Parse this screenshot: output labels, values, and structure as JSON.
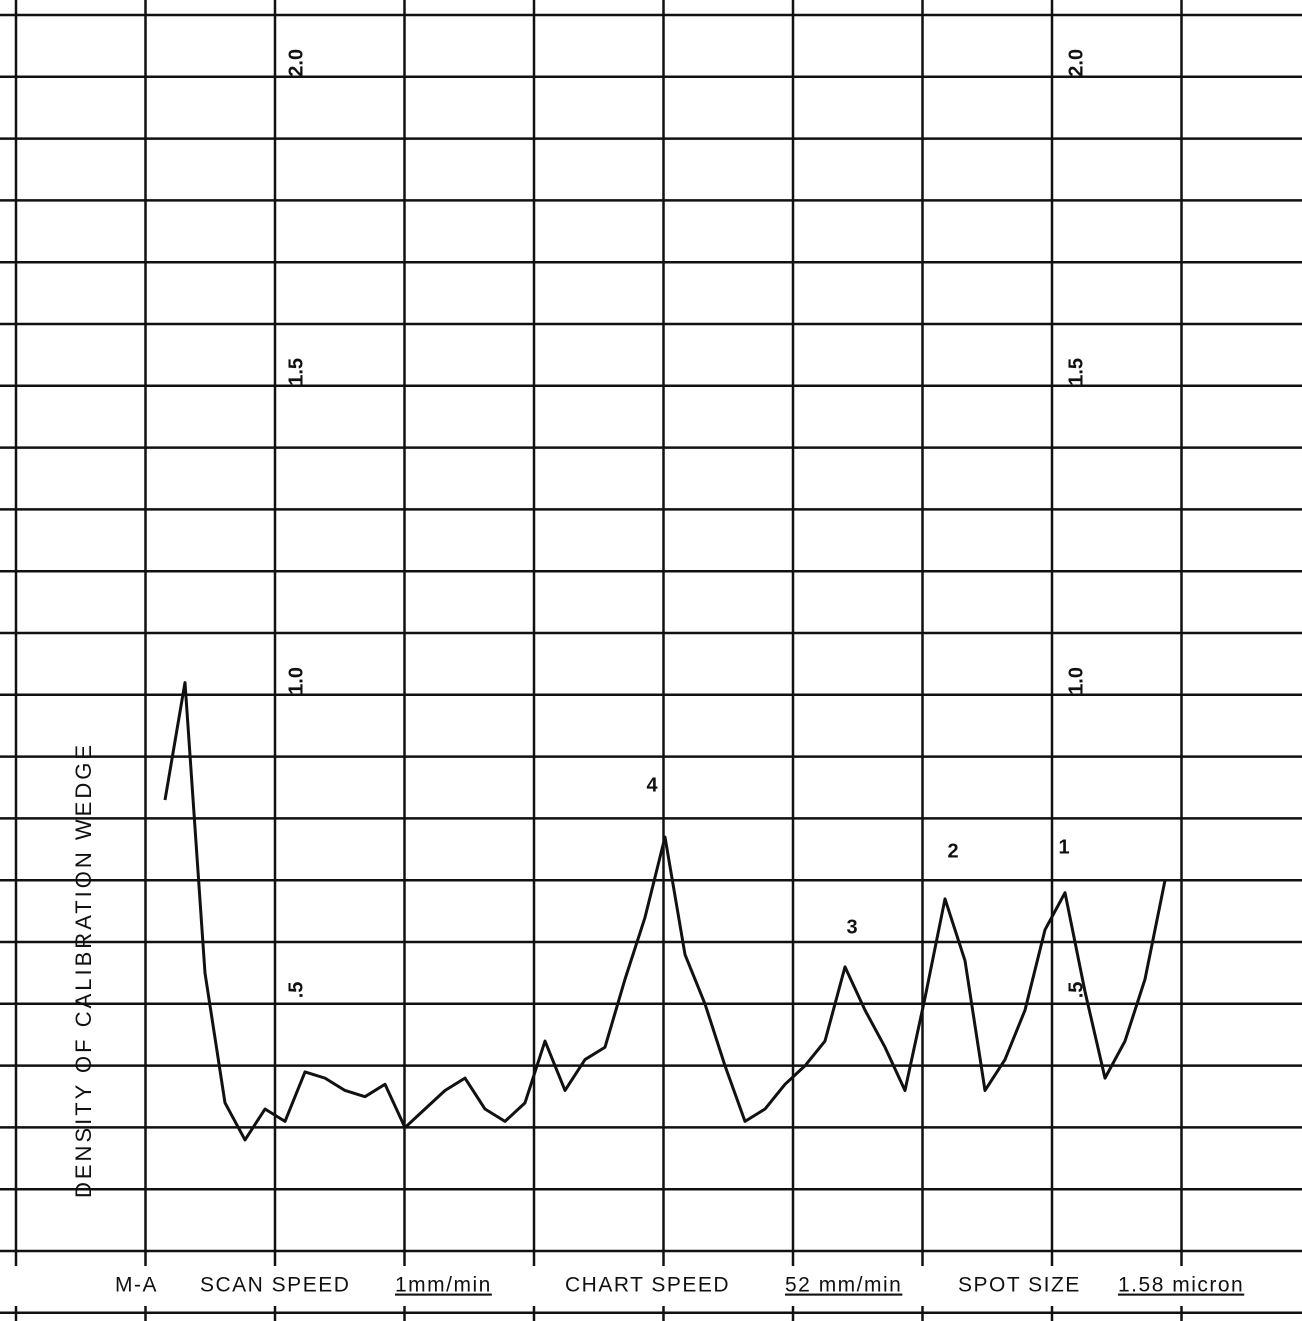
{
  "chart_data": {
    "type": "line",
    "y_label": "DENSITY OF CALIBRATION WEDGE",
    "ylim": [
      0,
      2.1
    ],
    "yticks": [
      {
        "value": 0.5,
        "label": ".5"
      },
      {
        "value": 1,
        "label": "1.0"
      },
      1.5,
      {
        "value": 2,
        "label": "2.0"
      }
    ],
    "values": [
      0.83,
      1.02,
      0.55,
      0.34,
      0.28,
      0.33,
      0.31,
      0.39,
      0.38,
      0.36,
      0.35,
      0.37,
      0.3,
      0.33,
      0.36,
      0.38,
      0.33,
      0.31,
      0.34,
      0.44,
      0.36,
      0.41,
      0.43,
      0.54,
      0.64,
      0.77,
      0.58,
      0.5,
      0.4,
      0.31,
      0.33,
      0.37,
      0.4,
      0.44,
      0.56,
      0.49,
      0.43,
      0.36,
      0.51,
      0.67,
      0.57,
      0.36,
      0.41,
      0.49,
      0.62,
      0.68,
      0.52,
      0.38,
      0.44,
      0.54,
      0.7
    ],
    "color": "#111111",
    "annotations": [
      "4",
      "3",
      "2",
      "1"
    ],
    "footer": {
      "instrument": "M-A",
      "scan_speed_label": "SCAN SPEED",
      "scan_speed": "1mm/min",
      "chart_speed_label": "CHART SPEED",
      "chart_speed": "52 mm/min",
      "spot_size_label": "SPOT SIZE",
      "spot_size": "1.58 micron"
    }
  }
}
